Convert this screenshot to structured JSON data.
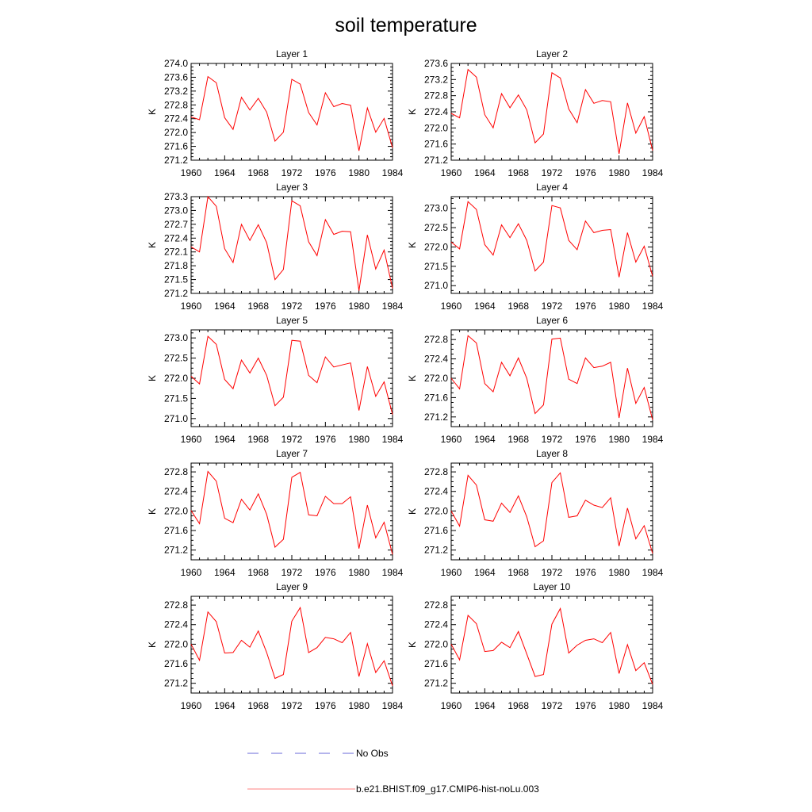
{
  "chart_data": {
    "title": "soil temperature",
    "type": "line",
    "grid": false,
    "x": [
      1960,
      1961,
      1962,
      1963,
      1964,
      1965,
      1966,
      1967,
      1968,
      1969,
      1970,
      1971,
      1972,
      1973,
      1974,
      1975,
      1976,
      1977,
      1978,
      1979,
      1980,
      1981,
      1982,
      1983,
      1984
    ],
    "xticks": [
      "1960",
      "1964",
      "1968",
      "1972",
      "1976",
      "1980",
      "1984"
    ],
    "xlim": [
      1960,
      1984
    ],
    "legend": [
      {
        "label": "No Obs",
        "style": "dashed",
        "color": "#6a6ad8"
      },
      {
        "label": "b.e21.BHIST.f09_g17.CMIP6-hist-noLu.003",
        "style": "solid",
        "color": "#ff0000"
      }
    ],
    "panels": [
      {
        "title": "Layer 1",
        "ylabel": "K",
        "ylim": [
          271.2,
          274.0
        ],
        "yticks": [
          "271.2",
          "271.6",
          "272.0",
          "272.4",
          "272.8",
          "273.2",
          "273.6",
          "274.0"
        ],
        "series": [
          {
            "color": "#ff0000",
            "values": [
              272.45,
              272.37,
              273.62,
              273.44,
              272.43,
              272.09,
              273.02,
              272.65,
              272.99,
              272.59,
              271.75,
              272.01,
              273.54,
              273.4,
              272.58,
              272.22,
              273.15,
              272.75,
              272.84,
              272.79,
              271.47,
              272.71,
              272.01,
              272.41,
              271.56
            ]
          }
        ]
      },
      {
        "title": "Layer 2",
        "ylabel": "K",
        "ylim": [
          271.2,
          273.6
        ],
        "yticks": [
          "271.2",
          "271.6",
          "272.0",
          "272.4",
          "272.8",
          "273.2",
          "273.6"
        ],
        "series": [
          {
            "color": "#ff0000",
            "values": [
              272.36,
              272.25,
              273.45,
              273.26,
              272.33,
              272.0,
              272.85,
              272.5,
              272.82,
              272.45,
              271.63,
              271.85,
              273.37,
              273.24,
              272.47,
              272.13,
              272.95,
              272.61,
              272.68,
              272.65,
              271.36,
              272.62,
              271.87,
              272.28,
              271.44
            ]
          }
        ]
      },
      {
        "title": "Layer 3",
        "ylabel": "K",
        "ylim": [
          271.2,
          273.3
        ],
        "yticks": [
          "271.2",
          "271.5",
          "271.8",
          "272.1",
          "272.4",
          "272.7",
          "273.0",
          "273.3"
        ],
        "series": [
          {
            "color": "#ff0000",
            "values": [
              272.21,
              272.1,
              273.3,
              273.09,
              272.17,
              271.87,
              272.7,
              272.35,
              272.69,
              272.3,
              271.5,
              271.72,
              273.21,
              273.1,
              272.32,
              272.02,
              272.8,
              272.48,
              272.55,
              272.54,
              271.26,
              272.47,
              271.73,
              272.14,
              271.31
            ]
          }
        ]
      },
      {
        "title": "Layer 4",
        "ylabel": "K",
        "ylim": [
          270.8,
          273.3
        ],
        "yticks": [
          "271.0",
          "271.5",
          "272.0",
          "272.5",
          "273.0"
        ],
        "series": [
          {
            "color": "#ff0000",
            "values": [
              272.13,
              271.95,
              273.17,
              272.97,
              272.06,
              271.79,
              272.57,
              272.24,
              272.6,
              272.17,
              271.38,
              271.61,
              273.07,
              273.01,
              272.17,
              271.93,
              272.67,
              272.37,
              272.43,
              272.45,
              271.22,
              272.37,
              271.61,
              272.02,
              271.24
            ]
          }
        ]
      },
      {
        "title": "Layer 5",
        "ylabel": "K",
        "ylim": [
          270.8,
          273.2
        ],
        "yticks": [
          "271.0",
          "271.5",
          "272.0",
          "272.5",
          "273.0"
        ],
        "series": [
          {
            "color": "#ff0000",
            "values": [
              272.05,
              271.86,
              273.04,
              272.84,
              271.97,
              271.74,
              272.45,
              272.13,
              272.5,
              272.07,
              271.32,
              271.53,
              272.94,
              272.92,
              272.07,
              271.89,
              272.53,
              272.28,
              272.33,
              272.38,
              271.2,
              272.29,
              271.55,
              271.91,
              271.1
            ]
          }
        ]
      },
      {
        "title": "Layer 6",
        "ylabel": "K",
        "ylim": [
          271.0,
          273.0
        ],
        "yticks": [
          "271.2",
          "271.6",
          "272.0",
          "272.4",
          "272.8"
        ],
        "series": [
          {
            "color": "#ff0000",
            "values": [
              272.0,
              271.78,
              272.88,
              272.73,
              271.89,
              271.72,
              272.33,
              272.05,
              272.42,
              272.0,
              271.27,
              271.45,
              272.81,
              272.83,
              271.98,
              271.89,
              272.42,
              272.22,
              272.25,
              272.33,
              271.18,
              272.21,
              271.48,
              271.81,
              271.14
            ]
          }
        ]
      },
      {
        "title": "Layer 7",
        "ylabel": "K",
        "ylim": [
          271.0,
          272.98
        ],
        "yticks": [
          "271.2",
          "271.6",
          "272.0",
          "272.4",
          "272.8"
        ],
        "series": [
          {
            "color": "#ff0000",
            "values": [
              272.01,
              271.74,
              272.81,
              272.61,
              271.85,
              271.76,
              272.24,
              272.02,
              272.35,
              271.93,
              271.26,
              271.42,
              272.69,
              272.79,
              271.92,
              271.9,
              272.3,
              272.15,
              272.15,
              272.29,
              271.23,
              272.12,
              271.45,
              271.77,
              271.11
            ]
          }
        ]
      },
      {
        "title": "Layer 8",
        "ylabel": "K",
        "ylim": [
          271.0,
          272.98
        ],
        "yticks": [
          "271.2",
          "271.6",
          "272.0",
          "272.4",
          "272.8"
        ],
        "series": [
          {
            "color": "#ff0000",
            "values": [
              272.0,
              271.69,
              272.73,
              272.53,
              271.82,
              271.79,
              272.16,
              271.97,
              272.31,
              271.88,
              271.27,
              271.39,
              272.58,
              272.78,
              271.87,
              271.9,
              272.22,
              272.12,
              272.07,
              272.27,
              271.28,
              272.06,
              271.43,
              271.7,
              271.13
            ]
          }
        ]
      },
      {
        "title": "Layer 9",
        "ylabel": "K",
        "ylim": [
          271.0,
          272.98
        ],
        "yticks": [
          "271.2",
          "271.6",
          "272.0",
          "272.4",
          "272.8"
        ],
        "series": [
          {
            "color": "#ff0000",
            "values": [
              272.0,
              271.67,
              272.66,
              272.46,
              271.82,
              271.83,
              272.08,
              271.94,
              272.27,
              271.83,
              271.3,
              271.38,
              272.47,
              272.75,
              271.83,
              271.93,
              272.14,
              272.11,
              272.03,
              272.24,
              271.34,
              272.01,
              271.42,
              271.66,
              271.15
            ]
          }
        ]
      },
      {
        "title": "Layer 10",
        "ylabel": "K",
        "ylim": [
          271.0,
          272.98
        ],
        "yticks": [
          "271.2",
          "271.6",
          "272.0",
          "272.4",
          "272.8"
        ],
        "series": [
          {
            "color": "#ff0000",
            "values": [
              272.0,
              271.68,
              272.59,
              272.42,
              271.85,
              271.87,
              272.04,
              271.93,
              272.26,
              271.8,
              271.34,
              271.38,
              272.41,
              272.73,
              271.82,
              271.98,
              272.08,
              272.11,
              272.03,
              272.24,
              271.4,
              271.99,
              271.46,
              271.62,
              271.18
            ]
          }
        ]
      }
    ]
  }
}
